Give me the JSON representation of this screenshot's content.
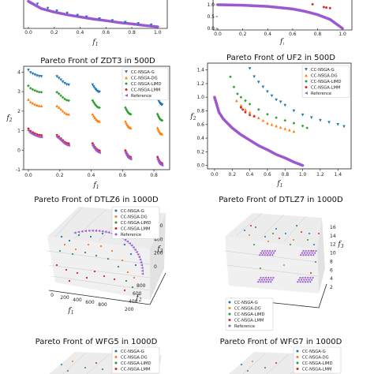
{
  "chart_data": [
    {
      "type": "scatter",
      "title": "",
      "xlabel": "f1",
      "ylabel": "",
      "xticks": [
        "0.0",
        "0.2",
        "0.4",
        "0.6",
        "0.8",
        "1.0"
      ],
      "yticks": [],
      "xlim": [
        0,
        1.05
      ],
      "ylim": [
        0,
        1.0
      ],
      "series": [
        {
          "name": "",
          "color": "#9b59d0",
          "kind": "curve",
          "points": [
            [
              0.0,
              0.95
            ],
            [
              0.1,
              0.68
            ],
            [
              0.2,
              0.55
            ],
            [
              0.3,
              0.45
            ],
            [
              0.4,
              0.37
            ],
            [
              0.5,
              0.29
            ],
            [
              0.6,
              0.23
            ],
            [
              0.7,
              0.16
            ],
            [
              0.8,
              0.11
            ],
            [
              0.9,
              0.05
            ],
            [
              1.0,
              0.0
            ]
          ]
        },
        {
          "name": "",
          "color": "#1f77b4",
          "kind": "points",
          "points": [
            [
              0.07,
              0.82
            ],
            [
              0.15,
              0.66
            ],
            [
              0.22,
              0.56
            ],
            [
              0.3,
              0.48
            ],
            [
              0.38,
              0.4
            ],
            [
              0.45,
              0.34
            ],
            [
              0.55,
              0.27
            ],
            [
              0.65,
              0.2
            ],
            [
              0.75,
              0.14
            ],
            [
              0.85,
              0.09
            ],
            [
              0.95,
              0.04
            ]
          ]
        }
      ]
    },
    {
      "type": "scatter",
      "title": "",
      "xlabel": "f1",
      "ylabel": "",
      "xticks": [
        "0.0",
        "0.2",
        "0.4",
        "0.6",
        "0.8",
        "1.0"
      ],
      "yticks": [
        "0.0",
        "0.5",
        "1.0"
      ],
      "xlim": [
        0,
        1.05
      ],
      "ylim": [
        0,
        1.2
      ],
      "series": [
        {
          "name": "",
          "color": "#9b59d0",
          "kind": "curve",
          "points": [
            [
              0.0,
              1.0
            ],
            [
              0.2,
              0.98
            ],
            [
              0.4,
              0.93
            ],
            [
              0.6,
              0.82
            ],
            [
              0.7,
              0.72
            ],
            [
              0.8,
              0.58
            ],
            [
              0.9,
              0.38
            ],
            [
              1.0,
              0.0
            ]
          ]
        },
        {
          "name": "",
          "color": "#d62728",
          "kind": "points",
          "points": [
            [
              0.76,
              1.02
            ],
            [
              0.85,
              0.9
            ],
            [
              0.87,
              0.88
            ],
            [
              0.9,
              0.86
            ]
          ]
        }
      ]
    },
    {
      "type": "scatter",
      "title": "Pareto Front of ZDT3 in 500D",
      "xlabel": "f1",
      "ylabel": "f2",
      "xticks": [
        "0.0",
        "0.2",
        "0.4",
        "0.6",
        "0.8"
      ],
      "yticks": [
        "-1",
        "0",
        "1",
        "2",
        "3",
        "4"
      ],
      "xlim": [
        -0.03,
        0.9
      ],
      "ylim": [
        -1.0,
        4.3
      ],
      "legend": "top-right",
      "series": [
        {
          "name": "CC-NSGA-G",
          "color": "#1f77b4",
          "marker": "triangle-down",
          "offset": 3.1
        },
        {
          "name": "CC-NSGA-DG",
          "color": "#ff7f0e",
          "marker": "triangle-up",
          "offset": 1.6
        },
        {
          "name": "CC-NSGA-LIMD",
          "color": "#2ca02c",
          "marker": "diamond",
          "offset": 2.3
        },
        {
          "name": "CC-NSGA-LMM",
          "color": "#d62728",
          "marker": "circle",
          "offset": 0.1
        },
        {
          "name": "Reference",
          "color": "#9b59d0",
          "marker": "triangle-left",
          "offset": 0.0
        }
      ],
      "segments": [
        [
          0.0,
          0.083
        ],
        [
          0.182,
          0.257
        ],
        [
          0.409,
          0.453
        ],
        [
          0.618,
          0.652
        ],
        [
          0.823,
          0.852
        ]
      ]
    },
    {
      "type": "scatter",
      "title": "Pareto Front of UF2 in 500D",
      "xlabel": "f1",
      "ylabel": "f2",
      "xticks": [
        "0.0",
        "0.2",
        "0.4",
        "0.6",
        "0.8",
        "1.0",
        "1.2",
        "1.4"
      ],
      "yticks": [
        "0.0",
        "0.2",
        "0.4",
        "0.6",
        "0.8",
        "1.0",
        "1.2",
        "1.4"
      ],
      "xlim": [
        -0.08,
        1.55
      ],
      "ylim": [
        -0.05,
        1.5
      ],
      "legend": "top-right",
      "series": [
        {
          "name": "CC-NSGA-G",
          "color": "#1f77b4",
          "marker": "triangle-down",
          "points": [
            [
              0.4,
              1.42
            ],
            [
              0.45,
              1.3
            ],
            [
              0.5,
              1.22
            ],
            [
              0.55,
              1.15
            ],
            [
              0.6,
              1.08
            ],
            [
              0.65,
              1.02
            ],
            [
              0.7,
              0.96
            ],
            [
              0.75,
              0.93
            ],
            [
              0.8,
              0.88
            ],
            [
              0.9,
              0.8
            ],
            [
              1.0,
              0.74
            ],
            [
              1.1,
              0.7
            ],
            [
              1.2,
              0.66
            ],
            [
              1.3,
              0.63
            ],
            [
              1.4,
              0.6
            ],
            [
              1.47,
              0.57
            ]
          ]
        },
        {
          "name": "CC-NSGA-DG",
          "color": "#ff7f0e",
          "marker": "triangle-up",
          "points": [
            [
              0.25,
              0.95
            ],
            [
              0.3,
              0.88
            ],
            [
              0.35,
              0.82
            ],
            [
              0.4,
              0.78
            ],
            [
              0.45,
              0.73
            ],
            [
              0.5,
              0.7
            ],
            [
              0.55,
              0.66
            ],
            [
              0.6,
              0.62
            ],
            [
              0.65,
              0.6
            ],
            [
              0.7,
              0.58
            ],
            [
              0.75,
              0.56
            ],
            [
              0.8,
              0.54
            ],
            [
              0.85,
              0.52
            ],
            [
              0.9,
              0.5
            ]
          ]
        },
        {
          "name": "CC-NSGA-LIMD",
          "color": "#2ca02c",
          "marker": "diamond",
          "points": [
            [
              0.18,
              1.3
            ],
            [
              0.22,
              1.15
            ],
            [
              0.26,
              1.05
            ],
            [
              0.3,
              1.0
            ],
            [
              0.35,
              0.95
            ],
            [
              0.4,
              0.9
            ],
            [
              0.5,
              0.82
            ],
            [
              0.6,
              0.75
            ],
            [
              0.7,
              0.7
            ],
            [
              0.8,
              0.66
            ],
            [
              0.9,
              0.62
            ],
            [
              1.0,
              0.58
            ],
            [
              1.05,
              0.55
            ]
          ]
        },
        {
          "name": "CC-NSGA-LMM",
          "color": "#d62728",
          "marker": "circle",
          "points": [
            [
              0.3,
              0.85
            ],
            [
              0.32,
              0.82
            ],
            [
              0.35,
              0.78
            ],
            [
              0.4,
              0.74
            ],
            [
              0.45,
              0.72
            ]
          ]
        },
        {
          "name": "Reference",
          "color": "#9b59d0",
          "marker": "triangle-left",
          "curve": true,
          "points": [
            [
              0.0,
              1.0
            ],
            [
              0.05,
              0.78
            ],
            [
              0.1,
              0.68
            ],
            [
              0.2,
              0.55
            ],
            [
              0.3,
              0.45
            ],
            [
              0.4,
              0.37
            ],
            [
              0.5,
              0.29
            ],
            [
              0.6,
              0.23
            ],
            [
              0.7,
              0.16
            ],
            [
              0.8,
              0.11
            ],
            [
              0.9,
              0.05
            ],
            [
              1.0,
              0.0
            ]
          ]
        }
      ]
    },
    {
      "type": "scatter",
      "title": "Pareto Front of DTLZ6 in 1000D",
      "xlabel": "f1",
      "ylabel": "f2",
      "zlabel": "f3",
      "xticks": [
        "0",
        "200",
        "400",
        "600",
        "800"
      ],
      "yticks": [
        "200",
        "400",
        "600",
        "800"
      ],
      "zticks": [
        "0",
        "200",
        "400",
        "600"
      ],
      "legend": "top-right",
      "series": [
        {
          "name": "CC-NSGA-G",
          "color": "#1f77b4"
        },
        {
          "name": "CC-NSGA-DG",
          "color": "#ff7f0e"
        },
        {
          "name": "CC-NSGA-LIMD",
          "color": "#2ca02c"
        },
        {
          "name": "CC-NSGA-LMM",
          "color": "#d62728"
        },
        {
          "name": "Reference",
          "color": "#9b59d0"
        }
      ]
    },
    {
      "type": "scatter",
      "title": "Pareto Front of DTLZ7 in 1000D",
      "xlabel": "",
      "ylabel": "",
      "zlabel": "f3",
      "zticks": [
        "2",
        "4",
        "6",
        "8",
        "10",
        "12",
        "14",
        "16"
      ],
      "legend": "bottom-left",
      "series": [
        {
          "name": "CC-NSGA-G",
          "color": "#1f77b4"
        },
        {
          "name": "CC-NSGA-DG",
          "color": "#ff7f0e"
        },
        {
          "name": "CC-NSGA-LIMD",
          "color": "#2ca02c"
        },
        {
          "name": "CC-NSGA-LMM",
          "color": "#d62728"
        },
        {
          "name": "Reference",
          "color": "#9b59d0"
        }
      ]
    },
    {
      "type": "scatter",
      "title": "Pareto Front of WFG5 in 1000D",
      "legend": "top-right",
      "series": [
        {
          "name": "CC-NSGA-G",
          "color": "#1f77b4"
        },
        {
          "name": "CC-NSGA-DG",
          "color": "#ff7f0e"
        },
        {
          "name": "CC-NSGA-LIMD",
          "color": "#2ca02c"
        },
        {
          "name": "CC-NSGA-LMM",
          "color": "#d62728"
        }
      ]
    },
    {
      "type": "scatter",
      "title": "Pareto Front of WFG7 in 1000D",
      "legend": "top-right",
      "series": [
        {
          "name": "CC-NSGA-G",
          "color": "#1f77b4"
        },
        {
          "name": "CC-NSGA-DG",
          "color": "#ff7f0e"
        },
        {
          "name": "CC-NSGA-LIMD",
          "color": "#2ca02c"
        },
        {
          "name": "CC-NSGA-LMM",
          "color": "#d62728"
        }
      ]
    }
  ]
}
